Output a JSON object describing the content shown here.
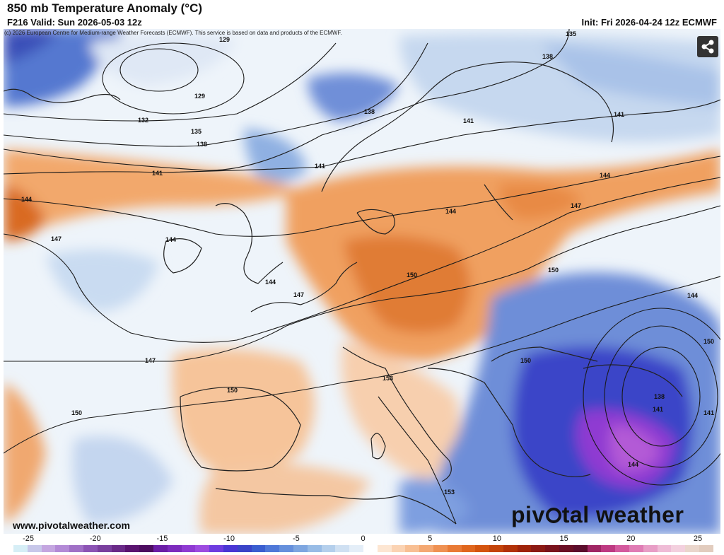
{
  "header": {
    "title": "850 mb Temperature Anomaly (°C)",
    "valid": "F216 Valid: Sun 2026-05-03 12z",
    "init": "Init: Fri 2026-04-24 12z ECMWF"
  },
  "copyright": "(c) 2026 European Centre for Medium-range Weather Forecasts (ECMWF). This service is based on data and products of the ECMWF.",
  "footer": {
    "website": "www.pivotalweather.com",
    "brand_left": "piv",
    "brand_right": "tal weather"
  },
  "colorbar": {
    "ticks": [
      "-25",
      "-20",
      "-15",
      "-10",
      "-5",
      "0",
      "5",
      "10",
      "15",
      "20",
      "25"
    ],
    "colors": [
      "#d6eef6",
      "#c8c8ea",
      "#c4a6e0",
      "#b38ad6",
      "#a070c6",
      "#8c54b4",
      "#7a3f9e",
      "#6a2a88",
      "#5a1470",
      "#4d0d60",
      "#6b1ea6",
      "#7d2bbd",
      "#8f3ad2",
      "#9d4be0",
      "#6e3ce0",
      "#4a36d4",
      "#3a44c8",
      "#3a5ed0",
      "#4f78d8",
      "#6690dc",
      "#7ea6e0",
      "#98bce6",
      "#b4cfec",
      "#cfe0f2",
      "#e4eef8",
      "#ffffff",
      "#fde6d2",
      "#fbd3b3",
      "#f8bf93",
      "#f4a872",
      "#ef9152",
      "#e97a35",
      "#e0661d",
      "#d4540e",
      "#c4440a",
      "#b23208",
      "#9f230a",
      "#8c1a14",
      "#7a131c",
      "#6a0f24",
      "#5c0d2c",
      "#a02664",
      "#be3a82",
      "#d45a9e",
      "#e07cb4",
      "#e89ec6",
      "#efbcd6",
      "#f3d0de",
      "#ead6cc",
      "#e2ccbe"
    ]
  },
  "contours": [
    {
      "label": "129"
    },
    {
      "label": "129"
    },
    {
      "label": "132"
    },
    {
      "label": "135"
    },
    {
      "label": "135"
    },
    {
      "label": "138"
    },
    {
      "label": "138"
    },
    {
      "label": "138"
    },
    {
      "label": "138"
    },
    {
      "label": "141"
    },
    {
      "label": "141"
    },
    {
      "label": "141"
    },
    {
      "label": "141"
    },
    {
      "label": "141"
    },
    {
      "label": "141"
    },
    {
      "label": "144"
    },
    {
      "label": "144"
    },
    {
      "label": "144"
    },
    {
      "label": "144"
    },
    {
      "label": "144"
    },
    {
      "label": "144"
    },
    {
      "label": "144"
    },
    {
      "label": "147"
    },
    {
      "label": "147"
    },
    {
      "label": "147"
    },
    {
      "label": "147"
    },
    {
      "label": "150"
    },
    {
      "label": "150"
    },
    {
      "label": "150"
    },
    {
      "label": "150"
    },
    {
      "label": "150"
    },
    {
      "label": "150"
    },
    {
      "label": "153"
    },
    {
      "label": "153"
    }
  ]
}
